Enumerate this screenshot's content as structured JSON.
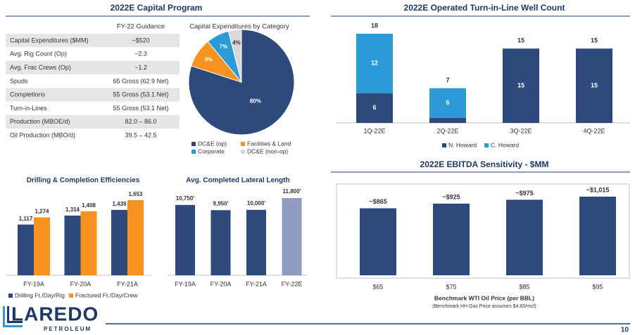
{
  "capital_program_title": "2022E Capital Program",
  "table": {
    "column_header": "FY-22 Guidance",
    "rows": [
      [
        "Capital Expenditures ($MM)",
        "~$520"
      ],
      [
        "Avg. Rig Count (Op)",
        "~2.3"
      ],
      [
        "Avg. Frac Crews (Op)",
        "~1.2"
      ],
      [
        "Spuds",
        "65 Gross (62.9 Net)"
      ],
      [
        "Completions",
        "55 Gross (53.1 Net)"
      ],
      [
        "Turn-in-Lines",
        "55 Gross (53.1 Net)"
      ],
      [
        "Production (MBOE/d)",
        "82.0 – 86.0"
      ],
      [
        "Oil Production (MBO/d)",
        "39.5 – 42.5"
      ]
    ]
  },
  "chart_data": [
    {
      "type": "pie",
      "title": "Capital Expenditures by Category",
      "categories": [
        "DC&E (op)",
        "Facilities & Land",
        "Corporate",
        "DC&E (non-op)"
      ],
      "values": [
        80,
        9,
        7,
        4
      ],
      "value_labels": [
        "80%",
        "9%",
        "7%",
        "4%"
      ],
      "colors": [
        "#2e4a7d",
        "#f7931e",
        "#2b9ad6",
        "#d9d9d9"
      ]
    },
    {
      "type": "stacked_bar",
      "title": "2022E Operated Turn-in-Line Well Count",
      "categories": [
        "1Q-22E",
        "2Q-22E",
        "3Q-22E",
        "4Q-22E"
      ],
      "series": [
        {
          "name": "N. Howard",
          "color": "#2e4a7d",
          "values": [
            6,
            1,
            15,
            15
          ]
        },
        {
          "name": "C. Howard",
          "color": "#2b9ad6",
          "values": [
            12,
            6,
            0,
            0
          ]
        }
      ],
      "totals": [
        18,
        7,
        15,
        15
      ]
    },
    {
      "type": "grouped_bar",
      "title": "Drilling & Completion Efficiencies",
      "categories": [
        "FY-19A",
        "FY-20A",
        "FY-21A"
      ],
      "series": [
        {
          "name": "Drilling Ft./Day/Rig",
          "color": "#2e4a7d",
          "values": [
            1117,
            1314,
            1439
          ],
          "value_labels": [
            "1,117",
            "1,314",
            "1,439"
          ]
        },
        {
          "name": "Fractured Ft./Day/Crew",
          "color": "#f7931e",
          "values": [
            1274,
            1408,
            1653
          ],
          "value_labels": [
            "1,274",
            "1,408",
            "1,653"
          ]
        }
      ]
    },
    {
      "type": "bar",
      "title": "Avg. Completed Lateral Length",
      "categories": [
        "FY-19A",
        "FY-20A",
        "FY-21A",
        "FY-22E"
      ],
      "values": [
        10750,
        9950,
        10000,
        11800
      ],
      "value_labels": [
        "10,750'",
        "9,950'",
        "10,000'",
        "11,800'"
      ],
      "colors": [
        "#2e4a7d",
        "#2e4a7d",
        "#2e4a7d",
        "#8e9dbf"
      ]
    },
    {
      "type": "bar",
      "title": "2022E EBITDA Sensitivity - $MM",
      "categories": [
        "$65",
        "$75",
        "$85",
        "$95"
      ],
      "values": [
        865,
        925,
        975,
        1015
      ],
      "value_labels": [
        "~$865",
        "~$925",
        "~$975",
        "~$1,015"
      ],
      "colors": [
        "#2e4a7d",
        "#2e4a7d",
        "#2e4a7d",
        "#2e4a7d"
      ],
      "xlabel": "Benchmark WTI Oil Price (per BBL)",
      "note": "(Benchmark HH Gas Price assumes $4.65/mcf)"
    }
  ],
  "logo": {
    "name": "LAREDO",
    "subtitle": "PETROLEUM"
  },
  "page_number": 10
}
